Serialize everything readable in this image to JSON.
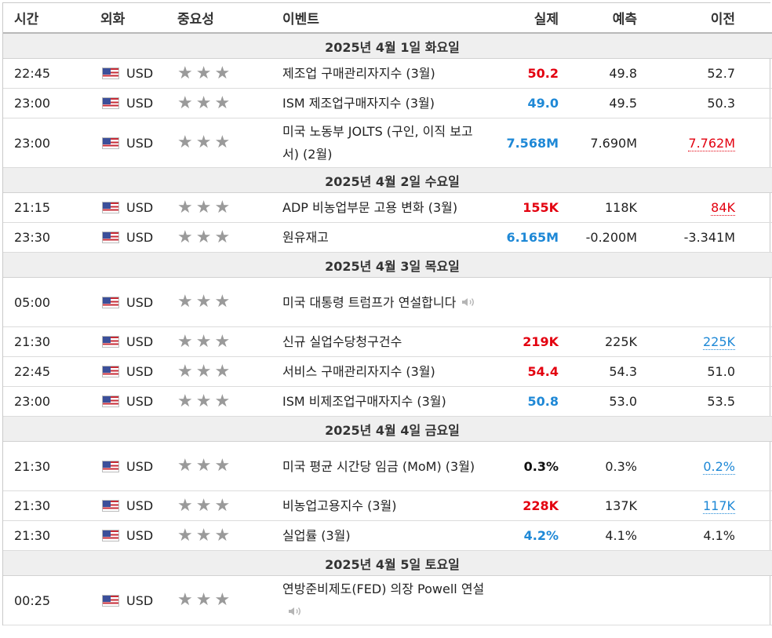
{
  "header": {
    "time": "시간",
    "currency": "외화",
    "importance": "중요성",
    "event": "이벤트",
    "actual": "실제",
    "forecast": "예측",
    "previous": "이전"
  },
  "icons": {
    "flag": "us-flag-icon",
    "star": "star-icon",
    "speaker": "speaker-icon"
  },
  "colors": {
    "better": "#e3000f",
    "worse": "#1e88d6",
    "neutral": "#111111",
    "star": "#9a9a9a"
  },
  "days": [
    {
      "label": "2025년 4월 1일 화요일",
      "events": [
        {
          "time": "22:45",
          "currency": "USD",
          "event": "제조업 구매관리자지수 (3월)",
          "actual": "50.2",
          "actual_color": "red",
          "forecast": "49.8",
          "previous": "52.7",
          "previous_style": "",
          "speaker": false,
          "tall": false
        },
        {
          "time": "23:00",
          "currency": "USD",
          "event": "ISM 제조업구매자지수 (3월)",
          "actual": "49.0",
          "actual_color": "blue",
          "forecast": "49.5",
          "previous": "50.3",
          "previous_style": "",
          "speaker": false,
          "tall": false
        },
        {
          "time": "23:00",
          "currency": "USD",
          "event": "미국 노동부 JOLTS (구인, 이직 보고서) (2월)",
          "actual": "7.568M",
          "actual_color": "blue",
          "forecast": "7.690M",
          "previous": "7.762M",
          "previous_style": "red",
          "speaker": false,
          "tall": true
        }
      ]
    },
    {
      "label": "2025년 4월 2일 수요일",
      "events": [
        {
          "time": "21:15",
          "currency": "USD",
          "event": "ADP 비농업부문 고용 변화 (3월)",
          "actual": "155K",
          "actual_color": "red",
          "forecast": "118K",
          "previous": "84K",
          "previous_style": "red",
          "speaker": false,
          "tall": false
        },
        {
          "time": "23:30",
          "currency": "USD",
          "event": "원유재고",
          "actual": "6.165M",
          "actual_color": "blue",
          "forecast": "-0.200M",
          "previous": "-3.341M",
          "previous_style": "",
          "speaker": false,
          "tall": false
        }
      ]
    },
    {
      "label": "2025년 4월 3일 목요일",
      "events": [
        {
          "time": "05:00",
          "currency": "USD",
          "event": "미국 대통령 트럼프가 연설합니다",
          "actual": "",
          "actual_color": "",
          "forecast": "",
          "previous": "",
          "previous_style": "",
          "speaker": true,
          "tall": true
        },
        {
          "time": "21:30",
          "currency": "USD",
          "event": "신규 실업수당청구건수",
          "actual": "219K",
          "actual_color": "red",
          "forecast": "225K",
          "previous": "225K",
          "previous_style": "blue",
          "speaker": false,
          "tall": false
        },
        {
          "time": "22:45",
          "currency": "USD",
          "event": "서비스 구매관리자지수 (3월)",
          "actual": "54.4",
          "actual_color": "red",
          "forecast": "54.3",
          "previous": "51.0",
          "previous_style": "",
          "speaker": false,
          "tall": false
        },
        {
          "time": "23:00",
          "currency": "USD",
          "event": "ISM 비제조업구매자지수 (3월)",
          "actual": "50.8",
          "actual_color": "blue",
          "forecast": "53.0",
          "previous": "53.5",
          "previous_style": "",
          "speaker": false,
          "tall": false
        }
      ]
    },
    {
      "label": "2025년 4월 4일 금요일",
      "events": [
        {
          "time": "21:30",
          "currency": "USD",
          "event": "미국 평균 시간당 임금 (MoM) (3월)",
          "actual": "0.3%",
          "actual_color": "black",
          "forecast": "0.3%",
          "previous": "0.2%",
          "previous_style": "blue",
          "speaker": false,
          "tall": true
        },
        {
          "time": "21:30",
          "currency": "USD",
          "event": "비농업고용지수 (3월)",
          "actual": "228K",
          "actual_color": "red",
          "forecast": "137K",
          "previous": "117K",
          "previous_style": "blue",
          "speaker": false,
          "tall": false
        },
        {
          "time": "21:30",
          "currency": "USD",
          "event": "실업률 (3월)",
          "actual": "4.2%",
          "actual_color": "blue",
          "forecast": "4.1%",
          "previous": "4.1%",
          "previous_style": "",
          "speaker": false,
          "tall": false
        }
      ]
    },
    {
      "label": "2025년 4월 5일 토요일",
      "events": [
        {
          "time": "00:25",
          "currency": "USD",
          "event": "연방준비제도(FED) 의장 Powell 연설",
          "actual": "",
          "actual_color": "",
          "forecast": "",
          "previous": "",
          "previous_style": "",
          "speaker": true,
          "tall": true
        }
      ]
    }
  ]
}
